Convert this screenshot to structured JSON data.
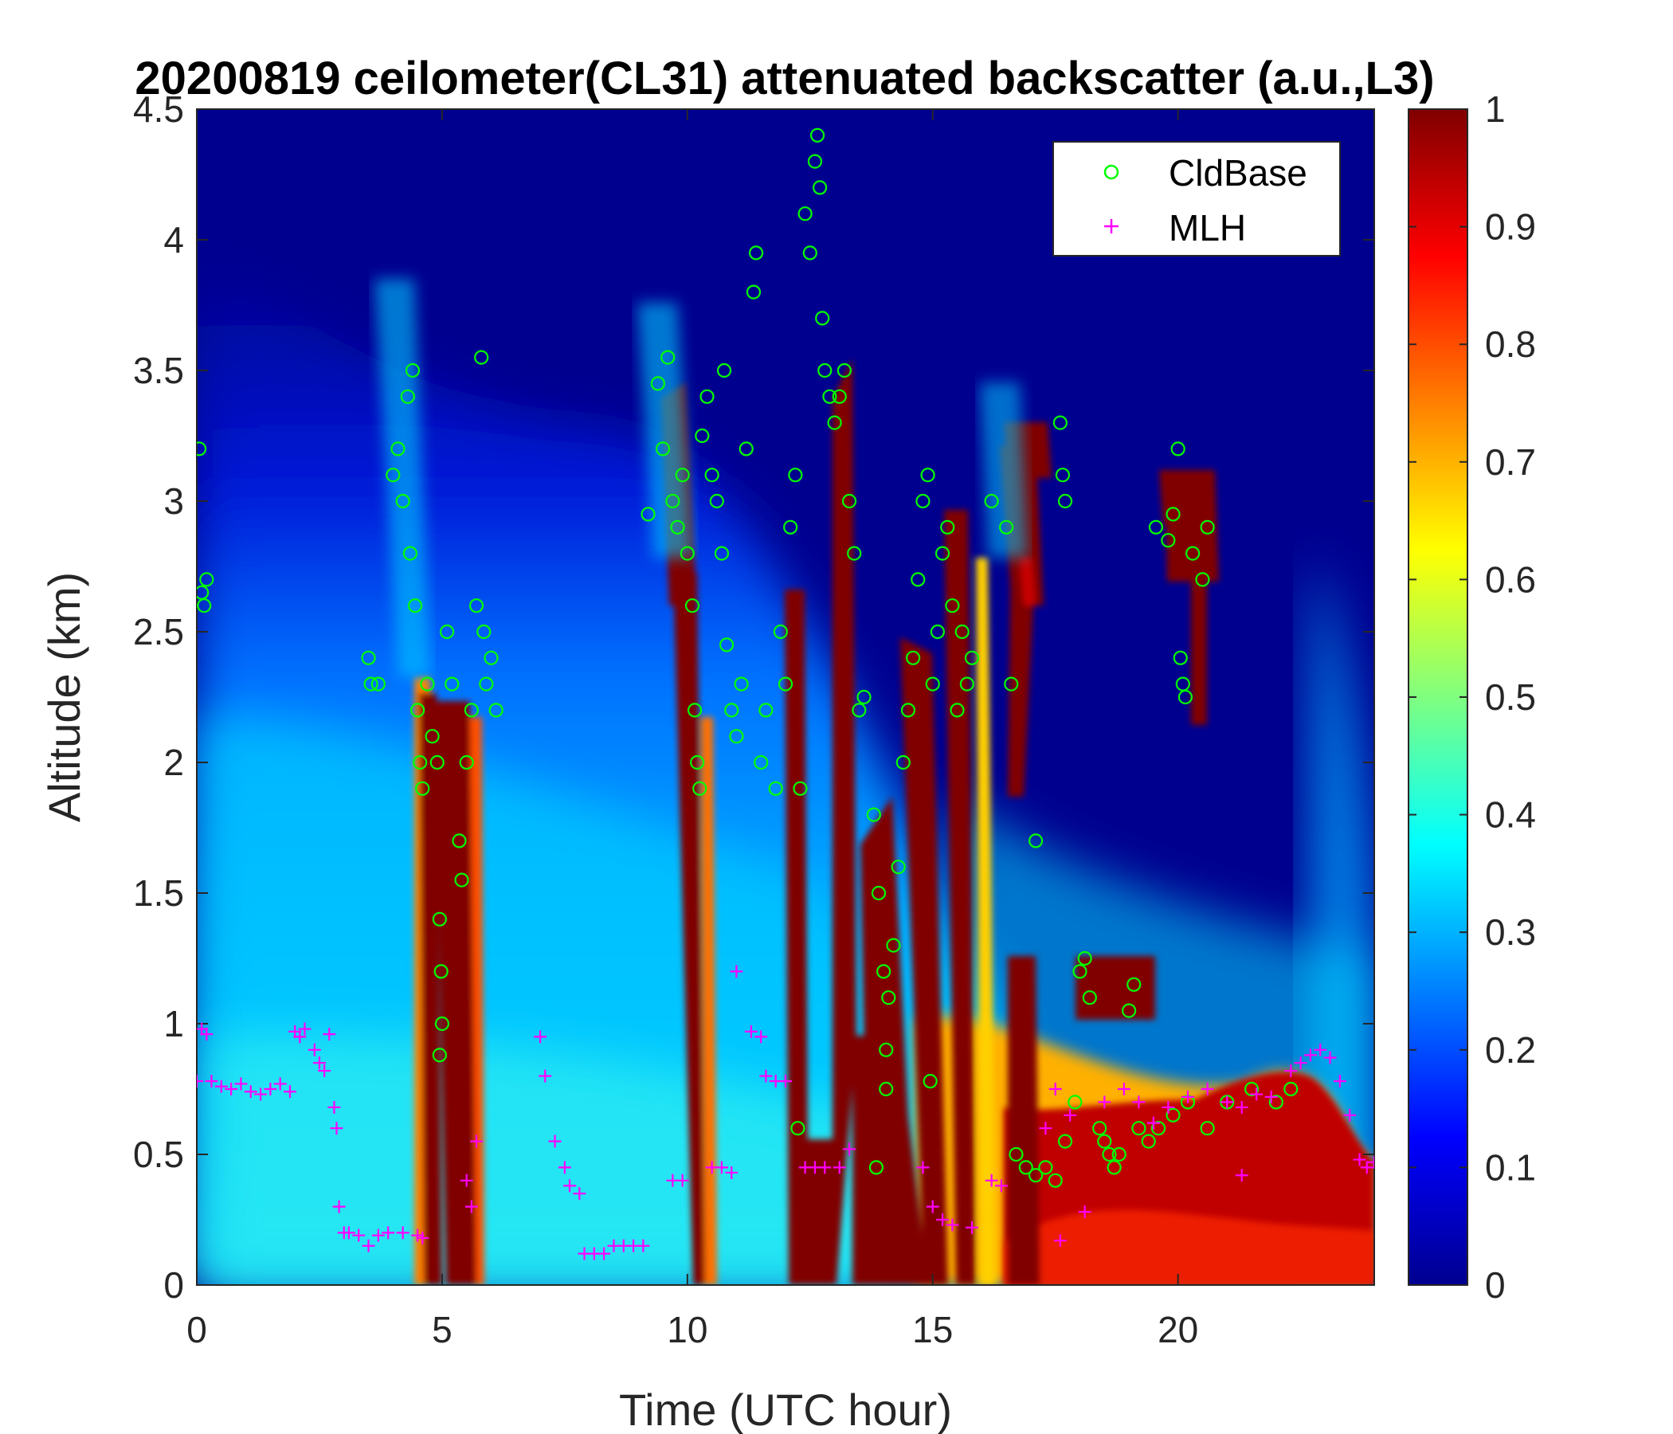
{
  "chart_data": {
    "type": "heatmap",
    "title": "20200819 ceilometer(CL31) attenuated backscatter (a.u.,L3)",
    "xlabel": "Time (UTC hour)",
    "ylabel": "Altitude (km)",
    "xlim": [
      0,
      24
    ],
    "ylim": [
      0,
      4.5
    ],
    "x_ticks": [
      "0",
      "5",
      "10",
      "15",
      "20"
    ],
    "y_ticks": [
      "0",
      "0.5",
      "1",
      "1.5",
      "2",
      "2.5",
      "3",
      "3.5",
      "4",
      "4.5"
    ],
    "colorbar": {
      "range": [
        0,
        1
      ],
      "ticks": [
        "0",
        "0.1",
        "0.2",
        "0.3",
        "0.4",
        "0.5",
        "0.6",
        "0.7",
        "0.8",
        "0.9",
        "1"
      ],
      "colormap": "jet"
    },
    "legend": {
      "position": "top-right",
      "entries": [
        "CldBase",
        "MLH"
      ]
    },
    "colors": {
      "cldbase": "#00ff00",
      "mlh": "#ff00ff",
      "high": "#800000",
      "low": "#00008f"
    },
    "series": [
      {
        "name": "CldBase",
        "marker": "circle",
        "points": [
          [
            0.05,
            3.2
          ],
          [
            0.1,
            2.65
          ],
          [
            0.15,
            2.6
          ],
          [
            0.2,
            2.7
          ],
          [
            3.5,
            2.4
          ],
          [
            3.55,
            2.3
          ],
          [
            3.7,
            2.3
          ],
          [
            4.0,
            3.1
          ],
          [
            4.1,
            3.2
          ],
          [
            4.2,
            3.0
          ],
          [
            4.3,
            3.4
          ],
          [
            4.4,
            3.5
          ],
          [
            4.35,
            2.8
          ],
          [
            4.45,
            2.6
          ],
          [
            4.5,
            2.2
          ],
          [
            4.55,
            2.0
          ],
          [
            4.6,
            1.9
          ],
          [
            4.7,
            2.3
          ],
          [
            4.8,
            2.1
          ],
          [
            4.9,
            2.0
          ],
          [
            4.95,
            1.4
          ],
          [
            4.98,
            1.2
          ],
          [
            5.0,
            1.0
          ],
          [
            4.95,
            0.88
          ],
          [
            5.1,
            2.5
          ],
          [
            5.2,
            2.3
          ],
          [
            5.35,
            1.7
          ],
          [
            5.4,
            1.55
          ],
          [
            5.5,
            2.0
          ],
          [
            5.6,
            2.2
          ],
          [
            5.7,
            2.6
          ],
          [
            5.8,
            3.55
          ],
          [
            5.85,
            2.5
          ],
          [
            5.9,
            2.3
          ],
          [
            6.0,
            2.4
          ],
          [
            6.1,
            2.2
          ],
          [
            9.2,
            2.95
          ],
          [
            9.4,
            3.45
          ],
          [
            9.5,
            3.2
          ],
          [
            9.6,
            3.55
          ],
          [
            9.7,
            3.0
          ],
          [
            9.8,
            2.9
          ],
          [
            9.9,
            3.1
          ],
          [
            10.0,
            2.8
          ],
          [
            10.1,
            2.6
          ],
          [
            10.15,
            2.2
          ],
          [
            10.2,
            2.0
          ],
          [
            10.25,
            1.9
          ],
          [
            10.3,
            3.25
          ],
          [
            10.4,
            3.4
          ],
          [
            10.5,
            3.1
          ],
          [
            10.6,
            3.0
          ],
          [
            10.7,
            2.8
          ],
          [
            10.75,
            3.5
          ],
          [
            10.8,
            2.45
          ],
          [
            10.9,
            2.2
          ],
          [
            11.0,
            2.1
          ],
          [
            11.1,
            2.3
          ],
          [
            11.2,
            3.2
          ],
          [
            11.35,
            3.8
          ],
          [
            11.4,
            3.95
          ],
          [
            11.5,
            2.0
          ],
          [
            11.6,
            2.2
          ],
          [
            11.8,
            1.9
          ],
          [
            11.9,
            2.5
          ],
          [
            12.0,
            2.3
          ],
          [
            12.1,
            2.9
          ],
          [
            12.2,
            3.1
          ],
          [
            12.3,
            1.9
          ],
          [
            12.4,
            4.1
          ],
          [
            12.5,
            3.95
          ],
          [
            12.6,
            4.3
          ],
          [
            12.65,
            4.4
          ],
          [
            12.7,
            4.2
          ],
          [
            12.75,
            3.7
          ],
          [
            12.8,
            3.5
          ],
          [
            12.9,
            3.4
          ],
          [
            13.0,
            3.3
          ],
          [
            13.1,
            3.4
          ],
          [
            13.2,
            3.5
          ],
          [
            13.3,
            3.0
          ],
          [
            13.4,
            2.8
          ],
          [
            13.5,
            2.2
          ],
          [
            13.6,
            2.25
          ],
          [
            12.25,
            0.6
          ],
          [
            13.8,
            1.8
          ],
          [
            13.9,
            1.5
          ],
          [
            14.0,
            1.2
          ],
          [
            14.05,
            0.9
          ],
          [
            14.1,
            1.1
          ],
          [
            14.2,
            1.3
          ],
          [
            14.3,
            1.6
          ],
          [
            14.4,
            2.0
          ],
          [
            14.5,
            2.2
          ],
          [
            14.6,
            2.4
          ],
          [
            14.7,
            2.7
          ],
          [
            14.8,
            3.0
          ],
          [
            14.9,
            3.1
          ],
          [
            15.0,
            2.3
          ],
          [
            15.1,
            2.5
          ],
          [
            15.2,
            2.8
          ],
          [
            15.3,
            2.9
          ],
          [
            15.4,
            2.6
          ],
          [
            15.5,
            2.2
          ],
          [
            15.6,
            2.5
          ],
          [
            15.7,
            2.3
          ],
          [
            15.8,
            2.4
          ],
          [
            14.95,
            0.78
          ],
          [
            13.85,
            0.45
          ],
          [
            14.05,
            0.75
          ],
          [
            16.2,
            3.0
          ],
          [
            16.5,
            2.9
          ],
          [
            16.6,
            2.3
          ],
          [
            17.1,
            1.7
          ],
          [
            17.6,
            3.3
          ],
          [
            17.65,
            3.1
          ],
          [
            17.7,
            3.0
          ],
          [
            16.7,
            0.5
          ],
          [
            16.9,
            0.45
          ],
          [
            17.1,
            0.42
          ],
          [
            17.3,
            0.45
          ],
          [
            17.5,
            0.4
          ],
          [
            17.7,
            0.55
          ],
          [
            17.9,
            0.7
          ],
          [
            18.0,
            1.2
          ],
          [
            18.1,
            1.25
          ],
          [
            18.2,
            1.1
          ],
          [
            18.4,
            0.6
          ],
          [
            18.5,
            0.55
          ],
          [
            18.6,
            0.5
          ],
          [
            18.7,
            0.45
          ],
          [
            18.8,
            0.5
          ],
          [
            19.0,
            1.05
          ],
          [
            19.1,
            1.15
          ],
          [
            19.2,
            0.6
          ],
          [
            19.4,
            0.55
          ],
          [
            19.6,
            0.6
          ],
          [
            19.9,
            0.65
          ],
          [
            20.2,
            0.7
          ],
          [
            20.6,
            0.6
          ],
          [
            21.0,
            0.7
          ],
          [
            21.5,
            0.75
          ],
          [
            22.0,
            0.7
          ],
          [
            22.3,
            0.75
          ],
          [
            19.55,
            2.9
          ],
          [
            19.8,
            2.85
          ],
          [
            19.9,
            2.95
          ],
          [
            20.0,
            3.2
          ],
          [
            20.05,
            2.4
          ],
          [
            20.1,
            2.3
          ],
          [
            20.15,
            2.25
          ],
          [
            20.3,
            2.8
          ],
          [
            20.5,
            2.7
          ],
          [
            20.6,
            2.9
          ]
        ]
      },
      {
        "name": "MLH",
        "marker": "plus",
        "points": [
          [
            0.0,
            0.78
          ],
          [
            0.1,
            0.98
          ],
          [
            0.2,
            0.96
          ],
          [
            0.3,
            0.78
          ],
          [
            0.5,
            0.76
          ],
          [
            0.7,
            0.75
          ],
          [
            0.9,
            0.77
          ],
          [
            1.1,
            0.74
          ],
          [
            1.3,
            0.73
          ],
          [
            1.5,
            0.75
          ],
          [
            1.7,
            0.77
          ],
          [
            1.9,
            0.74
          ],
          [
            2.0,
            0.97
          ],
          [
            2.1,
            0.95
          ],
          [
            2.2,
            0.98
          ],
          [
            2.4,
            0.9
          ],
          [
            2.5,
            0.85
          ],
          [
            2.6,
            0.82
          ],
          [
            2.7,
            0.96
          ],
          [
            2.8,
            0.68
          ],
          [
            2.85,
            0.6
          ],
          [
            2.9,
            0.3
          ],
          [
            3.0,
            0.2
          ],
          [
            3.1,
            0.2
          ],
          [
            3.3,
            0.19
          ],
          [
            3.5,
            0.15
          ],
          [
            3.7,
            0.19
          ],
          [
            3.9,
            0.2
          ],
          [
            4.2,
            0.2
          ],
          [
            4.5,
            0.19
          ],
          [
            4.6,
            0.18
          ],
          [
            5.7,
            0.55
          ],
          [
            5.5,
            0.4
          ],
          [
            5.6,
            0.3
          ],
          [
            7.0,
            0.95
          ],
          [
            7.1,
            0.8
          ],
          [
            7.3,
            0.55
          ],
          [
            7.5,
            0.45
          ],
          [
            7.6,
            0.38
          ],
          [
            7.8,
            0.35
          ],
          [
            7.9,
            0.12
          ],
          [
            8.1,
            0.12
          ],
          [
            8.3,
            0.12
          ],
          [
            8.5,
            0.15
          ],
          [
            8.7,
            0.15
          ],
          [
            8.9,
            0.15
          ],
          [
            9.1,
            0.15
          ],
          [
            9.7,
            0.4
          ],
          [
            9.9,
            0.4
          ],
          [
            10.5,
            0.45
          ],
          [
            10.7,
            0.45
          ],
          [
            10.9,
            0.43
          ],
          [
            11.0,
            1.2
          ],
          [
            11.3,
            0.97
          ],
          [
            11.5,
            0.95
          ],
          [
            11.6,
            0.8
          ],
          [
            11.8,
            0.78
          ],
          [
            12.0,
            0.78
          ],
          [
            12.4,
            0.45
          ],
          [
            12.6,
            0.45
          ],
          [
            12.8,
            0.45
          ],
          [
            13.1,
            0.45
          ],
          [
            13.3,
            0.52
          ],
          [
            14.8,
            0.45
          ],
          [
            15.0,
            0.3
          ],
          [
            15.2,
            0.25
          ],
          [
            15.4,
            0.23
          ],
          [
            15.8,
            0.22
          ],
          [
            16.2,
            0.4
          ],
          [
            16.4,
            0.38
          ],
          [
            17.3,
            0.6
          ],
          [
            17.5,
            0.75
          ],
          [
            17.8,
            0.65
          ],
          [
            18.1,
            0.28
          ],
          [
            17.6,
            0.17
          ],
          [
            18.5,
            0.7
          ],
          [
            18.9,
            0.75
          ],
          [
            19.2,
            0.7
          ],
          [
            19.5,
            0.62
          ],
          [
            19.8,
            0.68
          ],
          [
            20.2,
            0.72
          ],
          [
            20.6,
            0.75
          ],
          [
            21.0,
            0.7
          ],
          [
            21.3,
            0.68
          ],
          [
            21.6,
            0.73
          ],
          [
            21.9,
            0.72
          ],
          [
            22.3,
            0.82
          ],
          [
            22.5,
            0.85
          ],
          [
            22.7,
            0.88
          ],
          [
            22.9,
            0.9
          ],
          [
            23.1,
            0.87
          ],
          [
            23.3,
            0.78
          ],
          [
            23.5,
            0.65
          ],
          [
            23.7,
            0.48
          ],
          [
            23.85,
            0.45
          ],
          [
            24.0,
            0.47
          ],
          [
            21.3,
            0.42
          ]
        ]
      }
    ]
  }
}
